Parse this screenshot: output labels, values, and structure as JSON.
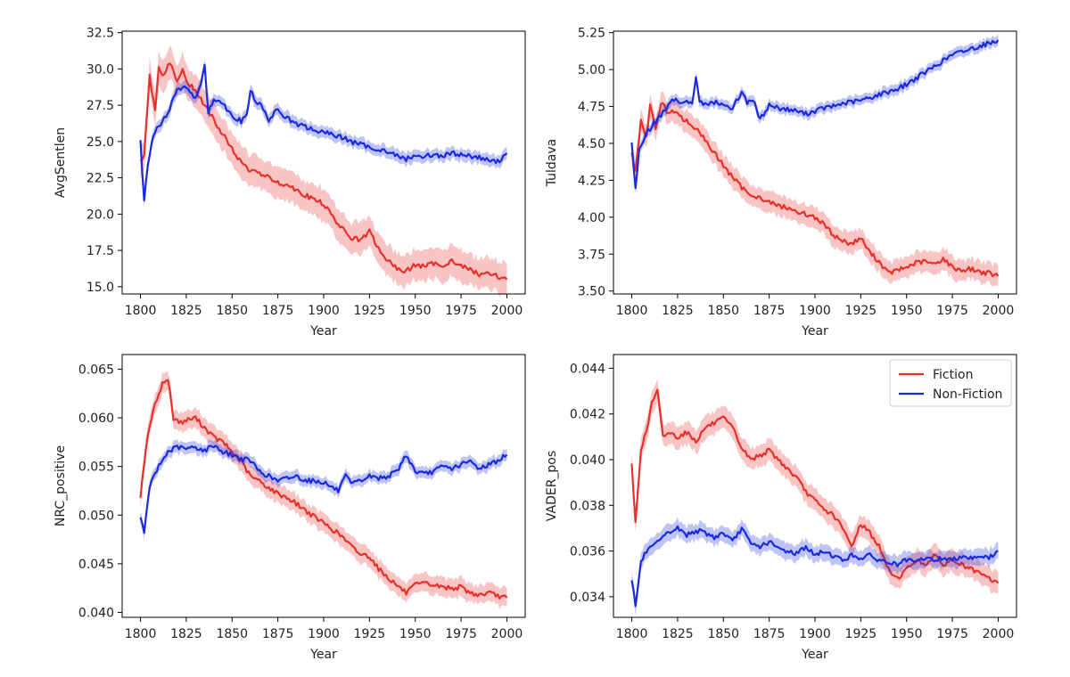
{
  "figure": {
    "description_title": ""
  },
  "legend": {
    "entries": [
      {
        "name": "Fiction",
        "color": "#e8302a"
      },
      {
        "name": "Non-Fiction",
        "color": "#1a2ae0"
      }
    ]
  },
  "chart_data": [
    {
      "type": "line",
      "id": "avgsentlen",
      "title": "",
      "xlabel": "Year",
      "ylabel": "AvgSentlen",
      "xlim": [
        1790,
        2010
      ],
      "ylim": [
        14.5,
        32.6
      ],
      "xticks": [
        1800,
        1825,
        1850,
        1875,
        1900,
        1925,
        1950,
        1975,
        2000
      ],
      "xtick_labels": [
        "1800",
        "1825",
        "1850",
        "1875",
        "1900",
        "1925",
        "1950",
        "1975",
        "2000"
      ],
      "yticks": [
        15.0,
        17.5,
        20.0,
        22.5,
        25.0,
        27.5,
        30.0,
        32.5
      ],
      "ytick_labels": [
        "15.0",
        "17.5",
        "20.0",
        "22.5",
        "25.0",
        "27.5",
        "30.0",
        "32.5"
      ],
      "legend": false,
      "series": [
        {
          "name": "Fiction",
          "color": "#e8302a",
          "x": [
            1800,
            1802,
            1805,
            1808,
            1810,
            1813,
            1816,
            1820,
            1823,
            1826,
            1830,
            1835,
            1840,
            1845,
            1850,
            1855,
            1860,
            1865,
            1870,
            1875,
            1880,
            1885,
            1890,
            1895,
            1900,
            1905,
            1910,
            1915,
            1920,
            1925,
            1930,
            1935,
            1940,
            1945,
            1950,
            1955,
            1960,
            1965,
            1970,
            1975,
            1980,
            1985,
            1990,
            1995,
            2000
          ],
          "values": [
            23.5,
            24.0,
            29.5,
            27.0,
            30.0,
            29.5,
            30.5,
            29.0,
            30.0,
            29.0,
            28.5,
            27.5,
            26.5,
            25.5,
            24.5,
            23.5,
            23.0,
            22.8,
            22.5,
            22.2,
            22.0,
            21.7,
            21.3,
            21.0,
            20.7,
            19.8,
            19.0,
            18.4,
            18.2,
            18.8,
            17.6,
            16.8,
            16.2,
            16.1,
            16.5,
            16.4,
            16.6,
            16.5,
            16.8,
            16.4,
            16.2,
            15.8,
            16.0,
            15.7,
            15.5
          ],
          "band": 0.9
        },
        {
          "name": "Non-Fiction",
          "color": "#1a2ae0",
          "x": [
            1800,
            1802,
            1804,
            1807,
            1810,
            1815,
            1820,
            1823,
            1826,
            1830,
            1833,
            1835,
            1837,
            1840,
            1845,
            1850,
            1855,
            1858,
            1860,
            1863,
            1866,
            1870,
            1875,
            1880,
            1885,
            1890,
            1895,
            1900,
            1905,
            1910,
            1915,
            1920,
            1925,
            1930,
            1935,
            1940,
            1945,
            1950,
            1955,
            1960,
            1965,
            1970,
            1975,
            1980,
            1985,
            1990,
            1995,
            2000
          ],
          "values": [
            25.0,
            20.8,
            23.5,
            25.5,
            26.0,
            27.0,
            28.5,
            28.8,
            28.5,
            28.0,
            28.8,
            30.4,
            27.0,
            28.0,
            27.6,
            26.8,
            26.4,
            26.8,
            28.5,
            27.8,
            27.4,
            26.5,
            27.2,
            26.6,
            26.2,
            26.0,
            25.8,
            25.6,
            25.5,
            25.3,
            25.0,
            24.8,
            24.6,
            24.5,
            24.3,
            24.0,
            23.8,
            24.0,
            24.0,
            24.1,
            24.0,
            24.2,
            24.1,
            24.0,
            23.9,
            23.7,
            23.6,
            24.2
          ],
          "band": 0.35
        }
      ]
    },
    {
      "type": "line",
      "id": "tuldava",
      "title": "",
      "xlabel": "Year",
      "ylabel": "Tuldava",
      "xlim": [
        1790,
        2010
      ],
      "ylim": [
        3.48,
        5.26
      ],
      "xticks": [
        1800,
        1825,
        1850,
        1875,
        1900,
        1925,
        1950,
        1975,
        2000
      ],
      "xtick_labels": [
        "1800",
        "1825",
        "1850",
        "1875",
        "1900",
        "1925",
        "1950",
        "1975",
        "2000"
      ],
      "yticks": [
        3.5,
        3.75,
        4.0,
        4.25,
        4.5,
        4.75,
        5.0,
        5.25
      ],
      "ytick_labels": [
        "3.50",
        "3.75",
        "4.00",
        "4.25",
        "4.50",
        "4.75",
        "5.00",
        "5.25"
      ],
      "legend": false,
      "series": [
        {
          "name": "Fiction",
          "color": "#e8302a",
          "x": [
            1800,
            1802,
            1805,
            1808,
            1810,
            1813,
            1816,
            1820,
            1823,
            1826,
            1830,
            1835,
            1840,
            1845,
            1850,
            1855,
            1860,
            1865,
            1870,
            1875,
            1880,
            1885,
            1890,
            1895,
            1900,
            1905,
            1910,
            1915,
            1920,
            1925,
            1930,
            1935,
            1940,
            1945,
            1950,
            1955,
            1960,
            1965,
            1970,
            1975,
            1980,
            1985,
            1990,
            1995,
            2000
          ],
          "values": [
            4.45,
            4.3,
            4.65,
            4.55,
            4.75,
            4.6,
            4.78,
            4.7,
            4.72,
            4.68,
            4.65,
            4.6,
            4.52,
            4.44,
            4.35,
            4.27,
            4.2,
            4.16,
            4.13,
            4.1,
            4.08,
            4.06,
            4.04,
            4.02,
            4.0,
            3.95,
            3.88,
            3.84,
            3.82,
            3.86,
            3.76,
            3.7,
            3.62,
            3.64,
            3.66,
            3.69,
            3.7,
            3.68,
            3.72,
            3.66,
            3.64,
            3.65,
            3.63,
            3.62,
            3.6
          ],
          "band": 0.06
        },
        {
          "name": "Non-Fiction",
          "color": "#1a2ae0",
          "x": [
            1800,
            1802,
            1804,
            1807,
            1810,
            1815,
            1820,
            1823,
            1826,
            1830,
            1833,
            1835,
            1837,
            1840,
            1845,
            1850,
            1855,
            1860,
            1863,
            1866,
            1870,
            1875,
            1880,
            1885,
            1890,
            1895,
            1900,
            1905,
            1910,
            1915,
            1920,
            1925,
            1930,
            1935,
            1940,
            1945,
            1950,
            1955,
            1960,
            1965,
            1970,
            1975,
            1980,
            1985,
            1990,
            1995,
            2000
          ],
          "values": [
            4.5,
            4.18,
            4.45,
            4.55,
            4.6,
            4.68,
            4.75,
            4.8,
            4.78,
            4.8,
            4.76,
            4.96,
            4.78,
            4.76,
            4.78,
            4.76,
            4.74,
            4.85,
            4.78,
            4.8,
            4.66,
            4.76,
            4.74,
            4.73,
            4.72,
            4.7,
            4.72,
            4.74,
            4.75,
            4.77,
            4.78,
            4.79,
            4.81,
            4.83,
            4.85,
            4.87,
            4.9,
            4.94,
            4.98,
            5.02,
            5.06,
            5.1,
            5.12,
            5.14,
            5.16,
            5.18,
            5.2
          ],
          "band": 0.03
        }
      ]
    },
    {
      "type": "line",
      "id": "nrc_positive",
      "title": "",
      "xlabel": "Year",
      "ylabel": "NRC_positive",
      "xlim": [
        1790,
        2010
      ],
      "ylim": [
        0.0395,
        0.0665
      ],
      "xticks": [
        1800,
        1825,
        1850,
        1875,
        1900,
        1925,
        1950,
        1975,
        2000
      ],
      "xtick_labels": [
        "1800",
        "1825",
        "1850",
        "1875",
        "1900",
        "1925",
        "1950",
        "1975",
        "2000"
      ],
      "yticks": [
        0.04,
        0.045,
        0.05,
        0.055,
        0.06,
        0.065
      ],
      "ytick_labels": [
        "0.040",
        "0.045",
        "0.050",
        "0.055",
        "0.060",
        "0.065"
      ],
      "legend": false,
      "series": [
        {
          "name": "Fiction",
          "color": "#e8302a",
          "x": [
            1800,
            1803,
            1806,
            1809,
            1812,
            1815,
            1818,
            1822,
            1826,
            1830,
            1835,
            1840,
            1845,
            1850,
            1855,
            1860,
            1865,
            1870,
            1875,
            1880,
            1885,
            1890,
            1895,
            1900,
            1905,
            1910,
            1915,
            1920,
            1925,
            1930,
            1935,
            1940,
            1945,
            1950,
            1955,
            1960,
            1965,
            1970,
            1975,
            1980,
            1985,
            1990,
            1995,
            2000
          ],
          "values": [
            0.052,
            0.057,
            0.06,
            0.062,
            0.0635,
            0.064,
            0.06,
            0.0595,
            0.0598,
            0.06,
            0.059,
            0.058,
            0.0575,
            0.0565,
            0.0555,
            0.054,
            0.0535,
            0.0528,
            0.0522,
            0.0518,
            0.0512,
            0.0505,
            0.0498,
            0.0492,
            0.0485,
            0.0478,
            0.0468,
            0.046,
            0.0458,
            0.0445,
            0.0436,
            0.0428,
            0.042,
            0.0428,
            0.043,
            0.0428,
            0.0426,
            0.0425,
            0.0426,
            0.042,
            0.0418,
            0.042,
            0.0417,
            0.0415
          ],
          "band": 0.0008
        },
        {
          "name": "Non-Fiction",
          "color": "#1a2ae0",
          "x": [
            1800,
            1802,
            1805,
            1810,
            1815,
            1820,
            1825,
            1830,
            1835,
            1840,
            1845,
            1850,
            1855,
            1860,
            1865,
            1870,
            1875,
            1880,
            1885,
            1890,
            1895,
            1900,
            1905,
            1908,
            1912,
            1915,
            1920,
            1925,
            1930,
            1935,
            1940,
            1945,
            1950,
            1955,
            1960,
            1965,
            1970,
            1975,
            1980,
            1985,
            1990,
            1995,
            2000
          ],
          "values": [
            0.05,
            0.048,
            0.053,
            0.055,
            0.0565,
            0.057,
            0.0568,
            0.057,
            0.0566,
            0.0572,
            0.0565,
            0.0562,
            0.0558,
            0.0556,
            0.0545,
            0.054,
            0.0535,
            0.0538,
            0.054,
            0.0536,
            0.0535,
            0.0534,
            0.0528,
            0.0525,
            0.054,
            0.0532,
            0.0535,
            0.054,
            0.0538,
            0.054,
            0.0545,
            0.0562,
            0.0545,
            0.0542,
            0.0545,
            0.055,
            0.0548,
            0.0552,
            0.0555,
            0.0548,
            0.0552,
            0.0556,
            0.0562
          ],
          "band": 0.0005
        }
      ]
    },
    {
      "type": "line",
      "id": "vader_pos",
      "title": "",
      "xlabel": "Year",
      "ylabel": "VADER_pos",
      "xlim": [
        1790,
        2010
      ],
      "ylim": [
        0.0331,
        0.0446
      ],
      "xticks": [
        1800,
        1825,
        1850,
        1875,
        1900,
        1925,
        1950,
        1975,
        2000
      ],
      "xtick_labels": [
        "1800",
        "1825",
        "1850",
        "1875",
        "1900",
        "1925",
        "1950",
        "1975",
        "2000"
      ],
      "yticks": [
        0.034,
        0.036,
        0.038,
        0.04,
        0.042,
        0.044
      ],
      "ytick_labels": [
        "0.034",
        "0.036",
        "0.038",
        "0.040",
        "0.042",
        "0.044"
      ],
      "legend": true,
      "legend_position": "top-right",
      "series": [
        {
          "name": "Fiction",
          "color": "#e8302a",
          "x": [
            1800,
            1802,
            1805,
            1808,
            1811,
            1814,
            1817,
            1820,
            1825,
            1830,
            1835,
            1840,
            1845,
            1850,
            1855,
            1860,
            1865,
            1870,
            1875,
            1880,
            1885,
            1890,
            1895,
            1900,
            1905,
            1910,
            1915,
            1920,
            1925,
            1930,
            1935,
            1940,
            1945,
            1950,
            1955,
            1960,
            1965,
            1970,
            1975,
            1980,
            1985,
            1990,
            1995,
            2000
          ],
          "values": [
            0.0398,
            0.0372,
            0.0405,
            0.0412,
            0.0425,
            0.043,
            0.041,
            0.0412,
            0.041,
            0.0412,
            0.0408,
            0.0414,
            0.0416,
            0.0418,
            0.0414,
            0.0405,
            0.04,
            0.0402,
            0.0404,
            0.04,
            0.0396,
            0.0392,
            0.0386,
            0.0382,
            0.0378,
            0.0376,
            0.037,
            0.0362,
            0.0372,
            0.0368,
            0.0362,
            0.0352,
            0.0348,
            0.0352,
            0.0356,
            0.0354,
            0.0358,
            0.0354,
            0.0356,
            0.0354,
            0.0352,
            0.035,
            0.0348,
            0.0346
          ],
          "band": 0.0004
        },
        {
          "name": "Non-Fiction",
          "color": "#1a2ae0",
          "x": [
            1800,
            1802,
            1805,
            1808,
            1812,
            1816,
            1820,
            1825,
            1830,
            1835,
            1840,
            1845,
            1850,
            1855,
            1860,
            1865,
            1870,
            1875,
            1880,
            1885,
            1890,
            1895,
            1900,
            1905,
            1910,
            1915,
            1920,
            1925,
            1930,
            1935,
            1940,
            1945,
            1950,
            1955,
            1960,
            1965,
            1970,
            1975,
            1980,
            1985,
            1990,
            1995,
            2000
          ],
          "values": [
            0.0348,
            0.0336,
            0.0355,
            0.036,
            0.0362,
            0.0365,
            0.0368,
            0.037,
            0.0367,
            0.0369,
            0.0368,
            0.0366,
            0.0368,
            0.0364,
            0.037,
            0.0363,
            0.0362,
            0.0364,
            0.0361,
            0.036,
            0.0359,
            0.0362,
            0.0358,
            0.036,
            0.0358,
            0.0356,
            0.0358,
            0.0357,
            0.0358,
            0.0356,
            0.0355,
            0.0354,
            0.0356,
            0.0355,
            0.0357,
            0.0356,
            0.0357,
            0.0356,
            0.0358,
            0.0357,
            0.0358,
            0.0357,
            0.036
          ],
          "band": 0.0003
        }
      ]
    }
  ]
}
